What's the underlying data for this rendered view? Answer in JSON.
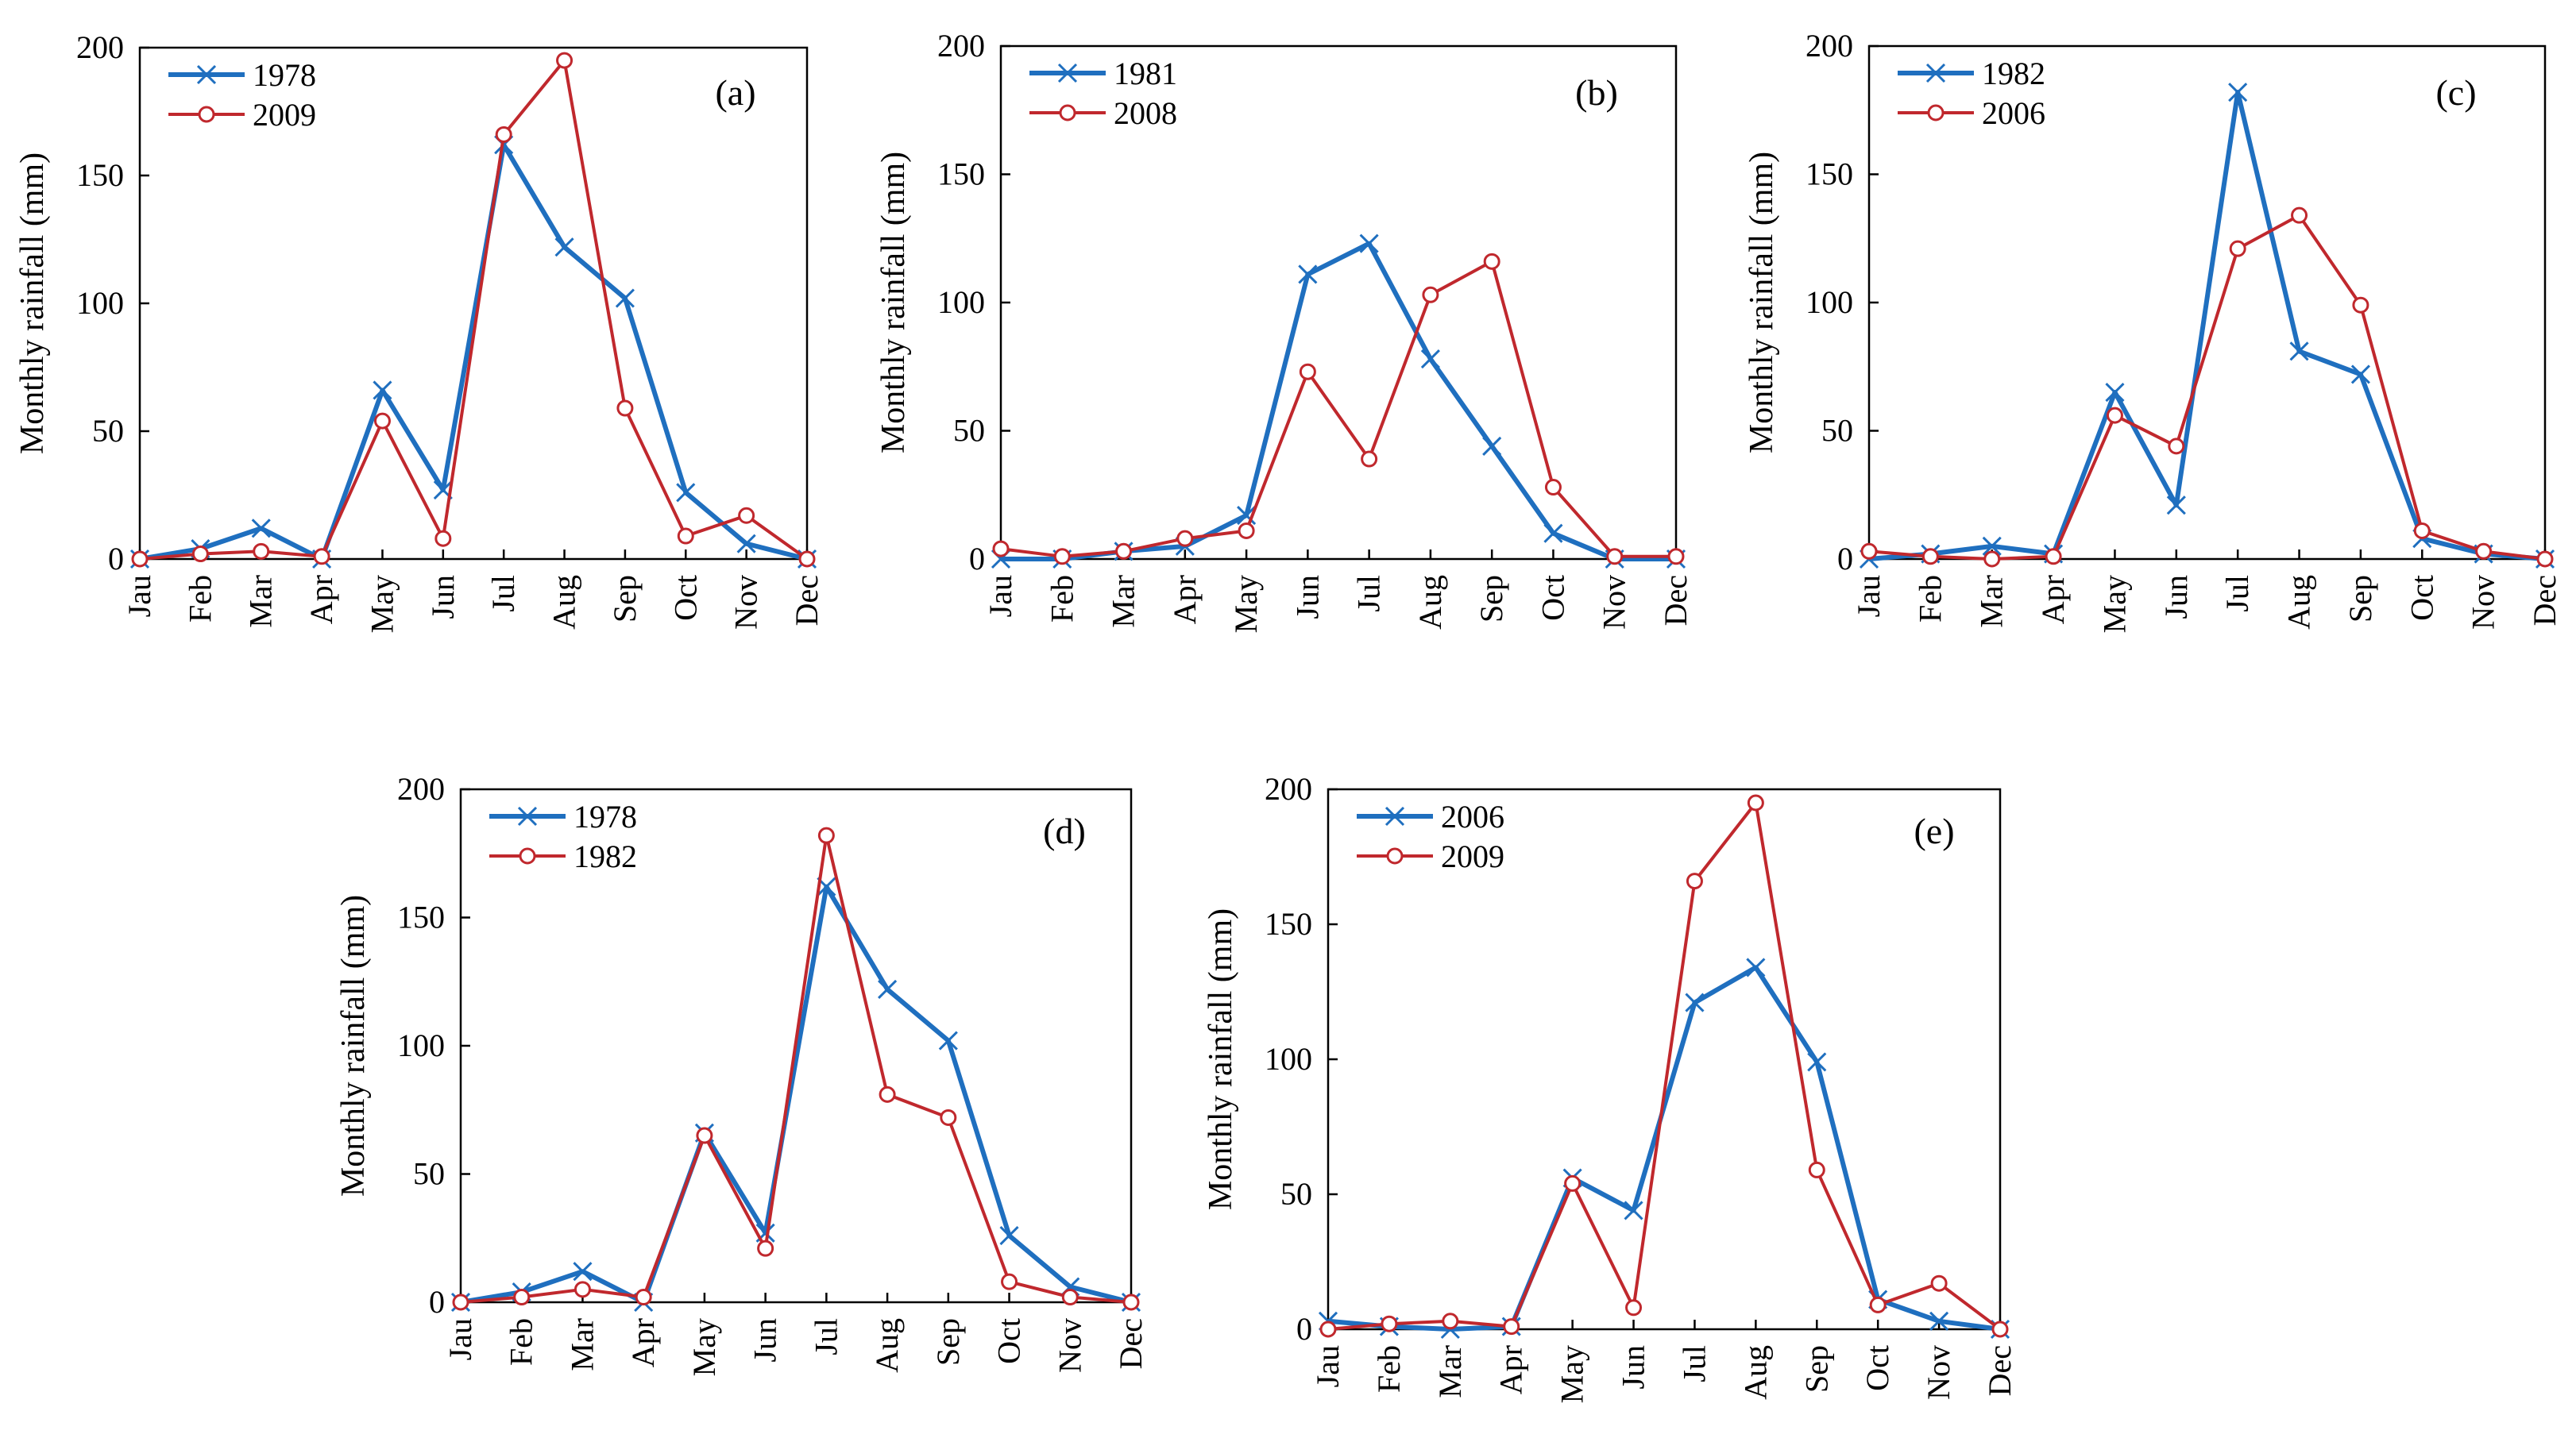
{
  "chart_data": [
    {
      "type": "line",
      "panel_label": "(a)",
      "ylabel": "Monthly rainfall (mm)",
      "xlabel": "",
      "ylim": [
        0,
        200
      ],
      "yticks": [
        0,
        50,
        100,
        150,
        200
      ],
      "categories": [
        "Jau",
        "Feb",
        "Mar",
        "Apr",
        "May",
        "Jun",
        "Jul",
        "Aug",
        "Sep",
        "Oct",
        "Nov",
        "Dec"
      ],
      "legend_position": "top-left",
      "series": [
        {
          "name": "1978",
          "color": "#1f6fbf",
          "marker": "x",
          "values": [
            0,
            4,
            12,
            0,
            66,
            27,
            162,
            122,
            102,
            26,
            6,
            0
          ]
        },
        {
          "name": "2009",
          "color": "#c0282d",
          "marker": "o",
          "values": [
            0,
            2,
            3,
            1,
            54,
            8,
            166,
            195,
            59,
            9,
            17,
            0
          ]
        }
      ]
    },
    {
      "type": "line",
      "panel_label": "(b)",
      "ylabel": "Monthly rainfall (mm)",
      "xlabel": "",
      "ylim": [
        0,
        200
      ],
      "yticks": [
        0,
        50,
        100,
        150,
        200
      ],
      "categories": [
        "Jau",
        "Feb",
        "Mar",
        "Apr",
        "May",
        "Jun",
        "Jul",
        "Aug",
        "Sep",
        "Oct",
        "Nov",
        "Dec"
      ],
      "legend_position": "top-left",
      "series": [
        {
          "name": "1981",
          "color": "#1f6fbf",
          "marker": "x",
          "values": [
            0,
            0,
            3,
            5,
            17,
            111,
            123,
            78,
            44,
            10,
            0,
            0
          ]
        },
        {
          "name": "2008",
          "color": "#c0282d",
          "marker": "o",
          "values": [
            4,
            1,
            3,
            8,
            11,
            73,
            39,
            103,
            116,
            28,
            1,
            1
          ]
        }
      ]
    },
    {
      "type": "line",
      "panel_label": "(c)",
      "ylabel": "Monthly rainfall (mm)",
      "xlabel": "",
      "ylim": [
        0,
        200
      ],
      "yticks": [
        0,
        50,
        100,
        150,
        200
      ],
      "categories": [
        "Jau",
        "Feb",
        "Mar",
        "Apr",
        "May",
        "Jun",
        "Jul",
        "Aug",
        "Sep",
        "Oct",
        "Nov",
        "Dec"
      ],
      "legend_position": "top-left",
      "series": [
        {
          "name": "1982",
          "color": "#1f6fbf",
          "marker": "x",
          "values": [
            0,
            2,
            5,
            2,
            65,
            21,
            182,
            81,
            72,
            8,
            2,
            0
          ]
        },
        {
          "name": "2006",
          "color": "#c0282d",
          "marker": "o",
          "values": [
            3,
            1,
            0,
            1,
            56,
            44,
            121,
            134,
            99,
            11,
            3,
            0
          ]
        }
      ]
    },
    {
      "type": "line",
      "panel_label": "(d)",
      "ylabel": "Monthly rainfall (mm)",
      "xlabel": "",
      "ylim": [
        0,
        200
      ],
      "yticks": [
        0,
        50,
        100,
        150,
        200
      ],
      "categories": [
        "Jau",
        "Feb",
        "Mar",
        "Apr",
        "May",
        "Jun",
        "Jul",
        "Aug",
        "Sep",
        "Oct",
        "Nov",
        "Dec"
      ],
      "legend_position": "top-left",
      "series": [
        {
          "name": "1978",
          "color": "#1f6fbf",
          "marker": "x",
          "values": [
            0,
            4,
            12,
            0,
            66,
            27,
            162,
            122,
            102,
            26,
            6,
            0
          ]
        },
        {
          "name": "1982",
          "color": "#c0282d",
          "marker": "o",
          "values": [
            0,
            2,
            5,
            2,
            65,
            21,
            182,
            81,
            72,
            8,
            2,
            0
          ]
        }
      ]
    },
    {
      "type": "line",
      "panel_label": "(e)",
      "ylabel": "Monthly rainfall (mm)",
      "xlabel": "",
      "ylim": [
        0,
        200
      ],
      "yticks": [
        0,
        50,
        100,
        150,
        200
      ],
      "categories": [
        "Jau",
        "Feb",
        "Mar",
        "Apr",
        "May",
        "Jun",
        "Jul",
        "Aug",
        "Sep",
        "Oct",
        "Nov",
        "Dec"
      ],
      "legend_position": "top-left",
      "series": [
        {
          "name": "2006",
          "color": "#1f6fbf",
          "marker": "x",
          "values": [
            3,
            1,
            0,
            1,
            56,
            44,
            121,
            134,
            99,
            11,
            3,
            0
          ]
        },
        {
          "name": "2009",
          "color": "#c0282d",
          "marker": "o",
          "values": [
            0,
            2,
            3,
            1,
            54,
            8,
            166,
            195,
            59,
            9,
            17,
            0
          ]
        }
      ]
    }
  ]
}
